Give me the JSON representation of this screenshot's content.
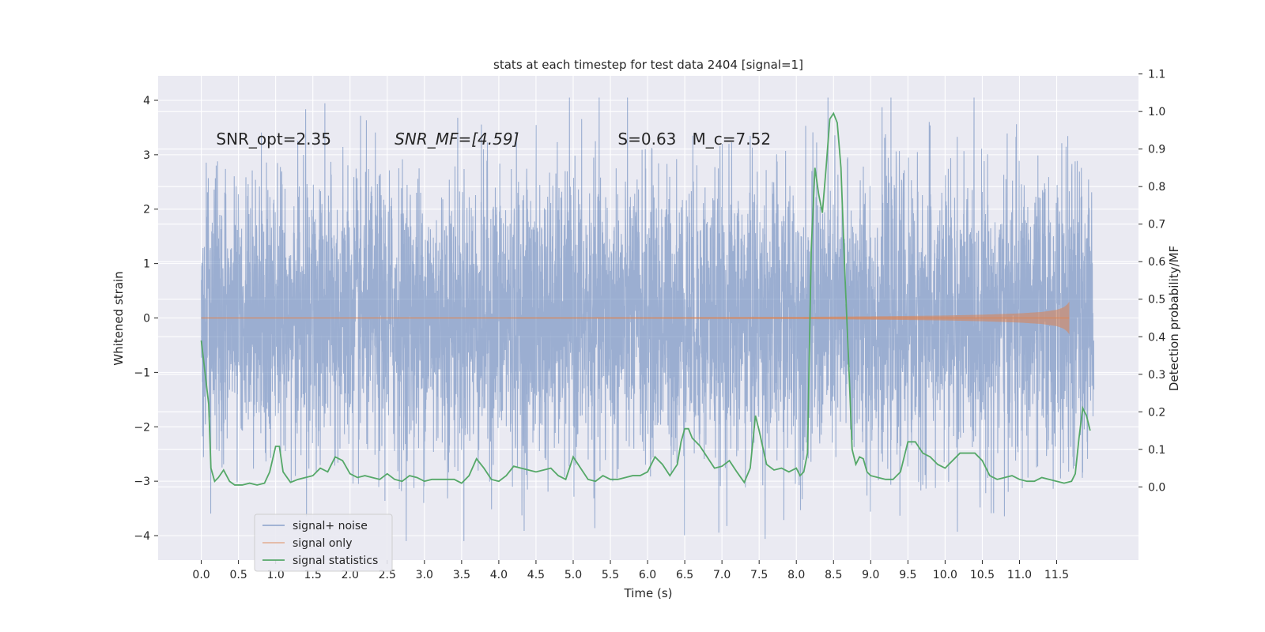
{
  "chart_data": {
    "type": "line",
    "title": "stats at each timestep for test data 2404 [signal=1]",
    "xlabel": "Time (s)",
    "ylabel_left": "Whitened strain",
    "ylabel_right": "Detection probability/MF",
    "xlim": [
      -0.58,
      12.6
    ],
    "ylim_left": [
      -4.45,
      4.45
    ],
    "ylim_right": [
      -0.195,
      1.095
    ],
    "x_ticks": [
      0.0,
      0.5,
      1.0,
      1.5,
      2.0,
      2.5,
      3.0,
      3.5,
      4.0,
      4.5,
      5.0,
      5.5,
      6.0,
      6.5,
      7.0,
      7.5,
      8.0,
      8.5,
      9.0,
      9.5,
      10.0,
      10.5,
      11.0,
      11.5
    ],
    "x_tick_labels": [
      "0.0",
      "0.5",
      "1.0",
      "1.5",
      "2.0",
      "2.5",
      "3.0",
      "3.5",
      "4.0",
      "4.5",
      "5.0",
      "5.5",
      "6.0",
      "6.5",
      "7.0",
      "7.5",
      "8.0",
      "8.5",
      "9.0",
      "9.5",
      "10.0",
      "10.5",
      "11.0",
      "11.5"
    ],
    "y_left_ticks": [
      -4,
      -3,
      -2,
      -1,
      0,
      1,
      2,
      3,
      4
    ],
    "y_left_tick_labels": [
      "−4",
      "−3",
      "−2",
      "−1",
      "0",
      "1",
      "2",
      "3",
      "4"
    ],
    "y_right_ticks": [
      0.0,
      0.1,
      0.2,
      0.3,
      0.4,
      0.5,
      0.6,
      0.7,
      0.8,
      0.9,
      1.0,
      1.1
    ],
    "y_right_tick_labels": [
      "0.0",
      "0.1",
      "0.2",
      "0.3",
      "0.4",
      "0.5",
      "0.6",
      "0.7",
      "0.8",
      "0.9",
      "1.0",
      "1.1"
    ],
    "grid": true,
    "legend_position": "lower-left",
    "annotations": [
      {
        "text": "SNR_opt=2.35",
        "x": 0.2
      },
      {
        "text": "SNR_MF=[4.59]",
        "x": 2.6
      },
      {
        "text": "S=0.63",
        "x": 5.6
      },
      {
        "text": "M_c=7.52",
        "x": 6.6
      }
    ],
    "noise_time_range": [
      0.0,
      12.0
    ],
    "noise_amplitude": 1.3,
    "series": [
      {
        "name": "signal+ noise",
        "color": "#4c72b0",
        "axis": "left",
        "kind": "noisy-trace",
        "x_range": [
          0.0,
          12.0
        ]
      },
      {
        "name": "signal only",
        "color": "#dd8452",
        "axis": "left",
        "kind": "chirp",
        "x_range": [
          0.0,
          11.67
        ],
        "envelope_x": [
          0.0,
          2.0,
          4.0,
          6.0,
          8.0,
          9.0,
          10.0,
          10.5,
          11.0,
          11.3,
          11.5,
          11.6,
          11.65,
          11.67
        ],
        "envelope_amplitude": [
          0.005,
          0.006,
          0.008,
          0.011,
          0.02,
          0.03,
          0.045,
          0.06,
          0.085,
          0.11,
          0.15,
          0.2,
          0.26,
          0.3
        ]
      },
      {
        "name": "signal statistics",
        "color": "#55a868",
        "axis": "right",
        "kind": "line",
        "x": [
          0.0,
          0.1,
          0.13,
          0.18,
          0.23,
          0.3,
          0.38,
          0.45,
          0.55,
          0.65,
          0.75,
          0.85,
          0.92,
          1.0,
          1.05,
          1.1,
          1.2,
          1.3,
          1.4,
          1.5,
          1.6,
          1.7,
          1.8,
          1.9,
          2.0,
          2.1,
          2.2,
          2.3,
          2.4,
          2.5,
          2.6,
          2.7,
          2.8,
          2.9,
          3.0,
          3.1,
          3.2,
          3.3,
          3.4,
          3.5,
          3.6,
          3.7,
          3.8,
          3.9,
          4.0,
          4.1,
          4.2,
          4.3,
          4.4,
          4.5,
          4.6,
          4.7,
          4.8,
          4.9,
          5.0,
          5.1,
          5.2,
          5.3,
          5.4,
          5.5,
          5.6,
          5.7,
          5.8,
          5.9,
          6.0,
          6.1,
          6.2,
          6.3,
          6.4,
          6.45,
          6.5,
          6.55,
          6.6,
          6.7,
          6.8,
          6.9,
          7.0,
          7.1,
          7.2,
          7.3,
          7.38,
          7.45,
          7.5,
          7.6,
          7.7,
          7.8,
          7.9,
          8.0,
          8.05,
          8.1,
          8.15,
          8.2,
          8.25,
          8.3,
          8.35,
          8.4,
          8.45,
          8.5,
          8.55,
          8.6,
          8.65,
          8.7,
          8.75,
          8.8,
          8.85,
          8.9,
          8.95,
          9.0,
          9.1,
          9.2,
          9.3,
          9.4,
          9.5,
          9.6,
          9.7,
          9.8,
          9.9,
          10.0,
          10.1,
          10.2,
          10.3,
          10.4,
          10.5,
          10.6,
          10.7,
          10.8,
          10.9,
          11.0,
          11.1,
          11.2,
          11.3,
          11.4,
          11.5,
          11.6,
          11.7,
          11.75,
          11.8,
          11.85,
          11.9,
          11.95
        ],
        "y": [
          0.39,
          0.22,
          0.05,
          0.015,
          0.025,
          0.045,
          0.015,
          0.005,
          0.005,
          0.01,
          0.005,
          0.01,
          0.04,
          0.108,
          0.108,
          0.04,
          0.012,
          0.02,
          0.025,
          0.03,
          0.05,
          0.04,
          0.08,
          0.07,
          0.035,
          0.025,
          0.03,
          0.025,
          0.02,
          0.035,
          0.02,
          0.015,
          0.03,
          0.025,
          0.015,
          0.02,
          0.02,
          0.02,
          0.02,
          0.01,
          0.03,
          0.075,
          0.05,
          0.02,
          0.015,
          0.03,
          0.055,
          0.05,
          0.045,
          0.04,
          0.045,
          0.05,
          0.03,
          0.02,
          0.08,
          0.05,
          0.02,
          0.015,
          0.03,
          0.02,
          0.02,
          0.025,
          0.03,
          0.03,
          0.04,
          0.08,
          0.06,
          0.03,
          0.06,
          0.12,
          0.155,
          0.155,
          0.13,
          0.11,
          0.08,
          0.05,
          0.055,
          0.07,
          0.04,
          0.012,
          0.05,
          0.19,
          0.15,
          0.06,
          0.045,
          0.05,
          0.04,
          0.05,
          0.03,
          0.04,
          0.09,
          0.63,
          0.85,
          0.78,
          0.73,
          0.85,
          0.98,
          0.995,
          0.97,
          0.85,
          0.58,
          0.35,
          0.1,
          0.06,
          0.08,
          0.075,
          0.04,
          0.03,
          0.025,
          0.02,
          0.02,
          0.04,
          0.12,
          0.12,
          0.09,
          0.08,
          0.06,
          0.05,
          0.07,
          0.09,
          0.09,
          0.09,
          0.07,
          0.03,
          0.02,
          0.025,
          0.03,
          0.02,
          0.015,
          0.015,
          0.025,
          0.02,
          0.015,
          0.01,
          0.015,
          0.035,
          0.13,
          0.21,
          0.19,
          0.15
        ]
      }
    ]
  }
}
